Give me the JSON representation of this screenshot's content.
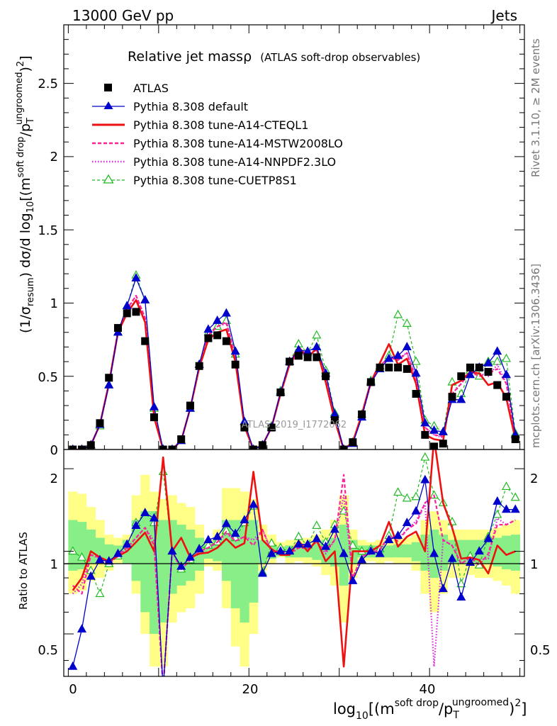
{
  "header": {
    "left": "13000 GeV pp",
    "right": "Jets"
  },
  "main_title": "Relative jet massρ",
  "main_subtitle": "(ATLAS soft-drop observables)",
  "side_labels": {
    "rivet": "Rivet 3.1.10, ≥ 2M events",
    "mcplots": "mcplots.cern.ch [arXiv:1306.3436]"
  },
  "watermark": "ATLAS_2019_I1772062",
  "axes": {
    "top_ylabel": {
      "a": "(1/σ",
      "a_sub": "resum",
      "b": ") dσ/d log",
      "b_sub": "10",
      "c": "[(m",
      "c_sup": "soft drop",
      "d": "/p",
      "d_sub": "T",
      "d_sup": "ungroomed",
      "e": ")",
      "e_sup": "2",
      "f": "]"
    },
    "bottom_ylabel": "Ratio to ATLAS",
    "xlabel": {
      "a": "log",
      "a_sub": "10",
      "b": "[(m",
      "b_sup": "soft drop",
      "c": "/p",
      "c_sub": "T",
      "c_sup": "ungroomed",
      "d": ")",
      "d_sup": "2",
      "e": "]"
    },
    "x_ticks": [
      "0",
      "20",
      "40"
    ],
    "top_y_ticks": [
      "0",
      "0.5",
      "1",
      "1.5",
      "2",
      "2.5"
    ],
    "ratio_y_ticks": [
      "0.5",
      "1",
      "2"
    ]
  },
  "legend": {
    "atlas": "ATLAS",
    "default": "Pythia 8.308 default",
    "cteql1": "Pythia 8.308 tune-A14-CTEQL1",
    "mstw": "Pythia 8.308 tune-A14-MSTW2008LO",
    "nnpdf": "Pythia 8.308 tune-A14-NNPDF2.3LO",
    "cuetp": "Pythia 8.308 tune-CUETP8S1"
  },
  "colors": {
    "atlas": "#000000",
    "default": "#0000cc",
    "cteql1": "#ee1111",
    "mstw": "#ff2299",
    "nnpdf": "#dd22dd",
    "cuetp": "#22bb22",
    "band_outer": "#ffff88",
    "band_inner": "#88ee88"
  },
  "chart_data": {
    "type": "line",
    "xlabel": "log10[(m^soft drop/p_T^ungroomed)^2]",
    "ylabel": "(1/σ_resum) dσ/d log10[(m^soft drop/p_T^ungroomed)^2]",
    "ratio_ylabel": "Ratio to ATLAS",
    "xlim": [
      -0.5,
      50.5
    ],
    "ylim": [
      0,
      2.9
    ],
    "ratio_ylim": [
      0.35,
      2.35
    ],
    "ratio_log_scale": true,
    "x": [
      0.5,
      1.5,
      2.5,
      3.5,
      4.5,
      5.5,
      6.5,
      7.5,
      8.5,
      9.5,
      10.5,
      11.5,
      12.5,
      13.5,
      14.5,
      15.5,
      16.5,
      17.5,
      18.5,
      19.5,
      20.5,
      21.5,
      22.5,
      23.5,
      24.5,
      25.5,
      26.5,
      27.5,
      28.5,
      29.5,
      30.5,
      31.5,
      32.5,
      33.5,
      34.5,
      35.5,
      36.5,
      37.5,
      38.5,
      39.5,
      40.5,
      41.5,
      42.5,
      43.5,
      44.5,
      45.5,
      46.5,
      47.5,
      48.5,
      49.5
    ],
    "series": [
      {
        "name": "ATLAS",
        "style": "markers",
        "values": [
          0.0,
          0.0,
          0.03,
          0.18,
          0.49,
          0.83,
          0.93,
          0.94,
          0.74,
          0.22,
          0.0,
          0.0,
          0.07,
          0.3,
          0.57,
          0.76,
          0.78,
          0.74,
          0.58,
          0.15,
          0.0,
          0.03,
          0.15,
          0.39,
          0.6,
          0.64,
          0.63,
          0.63,
          0.5,
          0.2,
          0.0,
          0.05,
          0.24,
          0.46,
          0.56,
          0.56,
          0.56,
          0.55,
          0.38,
          0.1,
          0.02,
          0.04,
          0.36,
          0.5,
          0.56,
          0.56,
          0.53,
          0.44,
          0.36,
          0.07
        ]
      },
      {
        "name": "Pythia 8.308 default",
        "values": [
          0.0,
          0.0,
          0.03,
          0.17,
          0.44,
          0.8,
          0.98,
          1.17,
          1.02,
          0.29,
          0.0,
          0.0,
          0.06,
          0.28,
          0.58,
          0.82,
          0.88,
          0.93,
          0.67,
          0.19,
          0.0,
          0.03,
          0.15,
          0.39,
          0.6,
          0.68,
          0.67,
          0.7,
          0.52,
          0.24,
          0.0,
          0.04,
          0.22,
          0.46,
          0.55,
          0.62,
          0.64,
          0.7,
          0.52,
          0.18,
          0.13,
          0.12,
          0.34,
          0.34,
          0.51,
          0.56,
          0.59,
          0.67,
          0.51,
          0.1
        ]
      },
      {
        "name": "Pythia 8.308 tune-A14-CTEQL1",
        "values": [
          0.0,
          0.0,
          0.03,
          0.17,
          0.45,
          0.8,
          0.93,
          1.02,
          0.87,
          0.22,
          0.0,
          0.0,
          0.06,
          0.28,
          0.56,
          0.75,
          0.8,
          0.82,
          0.6,
          0.16,
          0.0,
          0.03,
          0.15,
          0.38,
          0.58,
          0.7,
          0.63,
          0.69,
          0.46,
          0.2,
          0.0,
          0.05,
          0.24,
          0.46,
          0.59,
          0.72,
          0.58,
          0.62,
          0.45,
          0.1,
          0.07,
          0.06,
          0.44,
          0.47,
          0.53,
          0.52,
          0.44,
          0.46,
          0.35,
          0.07
        ]
      },
      {
        "name": "Pythia 8.308 tune-A14-MSTW2008LO",
        "values": [
          0.0,
          0.0,
          0.03,
          0.17,
          0.45,
          0.81,
          0.96,
          1.05,
          0.9,
          0.23,
          0.0,
          0.0,
          0.06,
          0.28,
          0.57,
          0.78,
          0.84,
          0.87,
          0.63,
          0.17,
          0.0,
          0.03,
          0.15,
          0.39,
          0.59,
          0.66,
          0.65,
          0.68,
          0.5,
          0.22,
          0.0,
          0.05,
          0.23,
          0.45,
          0.57,
          0.63,
          0.61,
          0.66,
          0.48,
          0.15,
          0.1,
          0.09,
          0.38,
          0.45,
          0.53,
          0.5,
          0.52,
          0.55,
          0.45,
          0.09
        ]
      },
      {
        "name": "Pythia 8.308 tune-A14-NNPDF2.3LO",
        "values": [
          0.0,
          0.0,
          0.03,
          0.17,
          0.44,
          0.8,
          0.95,
          1.05,
          0.9,
          0.24,
          0.0,
          0.0,
          0.06,
          0.28,
          0.57,
          0.78,
          0.84,
          0.86,
          0.63,
          0.17,
          0.0,
          0.03,
          0.15,
          0.38,
          0.58,
          0.66,
          0.64,
          0.68,
          0.49,
          0.22,
          0.0,
          0.05,
          0.23,
          0.45,
          0.56,
          0.64,
          0.62,
          0.66,
          0.49,
          0.15,
          0.1,
          0.08,
          0.38,
          0.45,
          0.53,
          0.52,
          0.5,
          0.58,
          0.45,
          0.09
        ]
      },
      {
        "name": "Pythia 8.308 tune-CUETP8S1",
        "values": [
          0.0,
          0.0,
          0.03,
          0.16,
          0.44,
          0.8,
          0.98,
          1.19,
          1.02,
          0.28,
          0.0,
          0.0,
          0.06,
          0.28,
          0.58,
          0.8,
          0.84,
          0.88,
          0.65,
          0.19,
          0.0,
          0.03,
          0.16,
          0.4,
          0.6,
          0.72,
          0.66,
          0.78,
          0.54,
          0.25,
          0.0,
          0.05,
          0.24,
          0.47,
          0.57,
          0.64,
          0.92,
          0.86,
          0.6,
          0.2,
          0.16,
          0.12,
          0.46,
          0.38,
          0.54,
          0.5,
          0.6,
          0.6,
          0.62,
          0.11
        ]
      }
    ],
    "ratio_series": [
      {
        "name": "Pythia 8.308 default",
        "values": [
          0.38,
          0.52,
          0.81,
          0.93,
          0.92,
          0.98,
          1.06,
          1.24,
          1.38,
          1.32,
          0.0,
          1.0,
          0.88,
          0.95,
          1.02,
          1.1,
          1.13,
          1.26,
          1.16,
          1.3,
          1.48,
          0.83,
          0.98,
          1.0,
          1.0,
          1.06,
          1.06,
          1.11,
          1.04,
          1.2,
          0.98,
          0.78,
          0.93,
          1.0,
          0.98,
          1.1,
          1.14,
          1.27,
          1.4,
          1.82,
          0.98,
          0.73,
          0.94,
          0.68,
          0.91,
          1.0,
          1.11,
          1.52,
          1.42,
          1.42
        ]
      },
      {
        "name": "Pythia 8.308 tune-A14-CTEQL1",
        "values": [
          0.72,
          0.8,
          1.0,
          0.95,
          0.92,
          0.96,
          1.0,
          1.08,
          1.17,
          1.0,
          2.2,
          1.0,
          1.12,
          0.95,
          0.98,
          0.99,
          1.03,
          1.11,
          1.03,
          1.07,
          1.95,
          1.1,
          1.02,
          0.97,
          0.97,
          1.09,
          1.0,
          1.1,
          0.92,
          1.0,
          0.38,
          1.0,
          1.0,
          1.0,
          1.05,
          1.28,
          1.04,
          1.13,
          1.18,
          1.0,
          3.5,
          1.5,
          1.22,
          0.94,
          0.95,
          0.93,
          0.83,
          1.05,
          0.97,
          1.0
        ]
      },
      {
        "name": "Pythia 8.308 tune-A14-MSTW2008LO",
        "values": [
          0.75,
          0.7,
          0.97,
          0.95,
          0.92,
          0.97,
          1.03,
          1.12,
          1.22,
          1.05,
          0.0,
          1.0,
          0.86,
          0.93,
          1.0,
          1.03,
          1.08,
          1.18,
          1.09,
          1.13,
          1.05,
          1.2,
          1.0,
          1.0,
          0.98,
          1.03,
          1.03,
          1.08,
          1.0,
          1.1,
          1.9,
          0.8,
          0.96,
          0.98,
          1.02,
          1.13,
          1.09,
          1.2,
          1.26,
          1.5,
          1.6,
          1.1,
          1.05,
          0.9,
          0.95,
          0.89,
          0.98,
          1.25,
          1.25,
          1.3
        ]
      },
      {
        "name": "Pythia 8.308 tune-A14-NNPDF2.3LO",
        "values": [
          0.7,
          0.76,
          0.97,
          0.94,
          0.9,
          0.96,
          1.02,
          1.12,
          1.22,
          1.09,
          0.0,
          1.0,
          0.86,
          0.93,
          1.0,
          1.03,
          1.08,
          1.16,
          1.09,
          1.13,
          1.1,
          1.2,
          1.0,
          0.97,
          0.97,
          1.03,
          1.02,
          1.08,
          0.98,
          1.1,
          1.6,
          0.8,
          0.96,
          0.98,
          1.0,
          1.14,
          1.11,
          1.2,
          1.29,
          1.5,
          0.38,
          1.1,
          1.05,
          0.9,
          0.95,
          0.93,
          0.94,
          1.32,
          1.25,
          1.3
        ]
      },
      {
        "name": "Pythia 8.308 tune-CUETP8S1",
        "values": [
          1.0,
          0.95,
          0.85,
          0.7,
          0.9,
          0.96,
          1.05,
          1.27,
          1.38,
          1.27,
          1.95,
          1.0,
          0.86,
          0.93,
          1.02,
          1.05,
          1.08,
          1.19,
          1.12,
          1.27,
          1.46,
          0.84,
          1.07,
          1.03,
          1.0,
          1.13,
          1.05,
          1.24,
          1.08,
          1.25,
          1.4,
          1.05,
          1.0,
          1.02,
          1.02,
          1.14,
          1.64,
          1.56,
          1.58,
          2.2,
          1.6,
          1.5,
          1.28,
          0.76,
          0.96,
          0.89,
          1.13,
          1.36,
          1.72,
          1.57
        ]
      }
    ],
    "ratio_band_outer": [
      [
        0.7,
        1.65
      ],
      [
        0.72,
        1.62
      ],
      [
        0.78,
        1.45
      ],
      [
        0.8,
        1.3
      ],
      [
        0.85,
        1.15
      ],
      [
        0.9,
        1.12
      ],
      [
        0.9,
        1.15
      ],
      [
        0.7,
        1.6
      ],
      [
        0.5,
        1.9
      ],
      [
        0.38,
        1.65
      ],
      [
        0.38,
        1.55
      ],
      [
        0.55,
        1.6
      ],
      [
        0.6,
        1.5
      ],
      [
        0.62,
        1.45
      ],
      [
        0.7,
        1.25
      ],
      [
        0.88,
        1.1
      ],
      [
        0.85,
        1.2
      ],
      [
        0.62,
        1.7
      ],
      [
        0.45,
        1.7
      ],
      [
        0.38,
        1.65
      ],
      [
        0.5,
        1.55
      ],
      [
        0.85,
        1.25
      ],
      [
        0.9,
        1.15
      ],
      [
        0.95,
        1.08
      ],
      [
        0.9,
        1.1
      ],
      [
        0.92,
        1.1
      ],
      [
        0.9,
        1.12
      ],
      [
        0.88,
        1.15
      ],
      [
        0.82,
        1.2
      ],
      [
        0.75,
        1.3
      ],
      [
        0.55,
        1.6
      ],
      [
        0.8,
        1.2
      ],
      [
        0.9,
        1.1
      ],
      [
        0.92,
        1.08
      ],
      [
        0.9,
        1.1
      ],
      [
        0.92,
        1.1
      ],
      [
        0.9,
        1.12
      ],
      [
        0.9,
        1.12
      ],
      [
        0.85,
        1.15
      ],
      [
        0.7,
        1.3
      ],
      [
        0.6,
        1.4
      ],
      [
        0.7,
        1.3
      ],
      [
        0.8,
        1.2
      ],
      [
        0.8,
        1.2
      ],
      [
        0.82,
        1.2
      ],
      [
        0.8,
        1.2
      ],
      [
        0.8,
        1.2
      ],
      [
        0.78,
        1.22
      ],
      [
        0.75,
        1.25
      ],
      [
        0.7,
        1.3
      ]
    ],
    "ratio_band_inner": [
      [
        0.85,
        1.3
      ],
      [
        0.86,
        1.28
      ],
      [
        0.9,
        1.2
      ],
      [
        0.92,
        1.12
      ],
      [
        0.93,
        1.06
      ],
      [
        0.95,
        1.05
      ],
      [
        0.9,
        1.1
      ],
      [
        0.78,
        1.3
      ],
      [
        0.6,
        1.4
      ],
      [
        0.5,
        1.4
      ],
      [
        0.55,
        1.3
      ],
      [
        0.7,
        1.3
      ],
      [
        0.75,
        1.25
      ],
      [
        0.78,
        1.2
      ],
      [
        0.85,
        1.12
      ],
      [
        0.94,
        1.06
      ],
      [
        0.92,
        1.1
      ],
      [
        0.78,
        1.3
      ],
      [
        0.62,
        1.3
      ],
      [
        0.55,
        1.3
      ],
      [
        0.65,
        1.3
      ],
      [
        0.9,
        1.1
      ],
      [
        0.94,
        1.06
      ],
      [
        0.96,
        1.04
      ],
      [
        0.95,
        1.05
      ],
      [
        0.95,
        1.05
      ],
      [
        0.95,
        1.06
      ],
      [
        0.93,
        1.08
      ],
      [
        0.9,
        1.1
      ],
      [
        0.88,
        1.12
      ],
      [
        0.75,
        1.25
      ],
      [
        0.9,
        1.1
      ],
      [
        0.95,
        1.05
      ],
      [
        0.95,
        1.05
      ],
      [
        0.95,
        1.05
      ],
      [
        0.95,
        1.05
      ],
      [
        0.95,
        1.06
      ],
      [
        0.95,
        1.06
      ],
      [
        0.92,
        1.08
      ],
      [
        0.85,
        1.15
      ],
      [
        0.8,
        1.2
      ],
      [
        0.85,
        1.15
      ],
      [
        0.9,
        1.1
      ],
      [
        0.9,
        1.1
      ],
      [
        0.9,
        1.1
      ],
      [
        0.9,
        1.1
      ],
      [
        0.9,
        1.1
      ],
      [
        0.88,
        1.12
      ],
      [
        0.86,
        1.14
      ],
      [
        0.85,
        1.15
      ]
    ]
  }
}
